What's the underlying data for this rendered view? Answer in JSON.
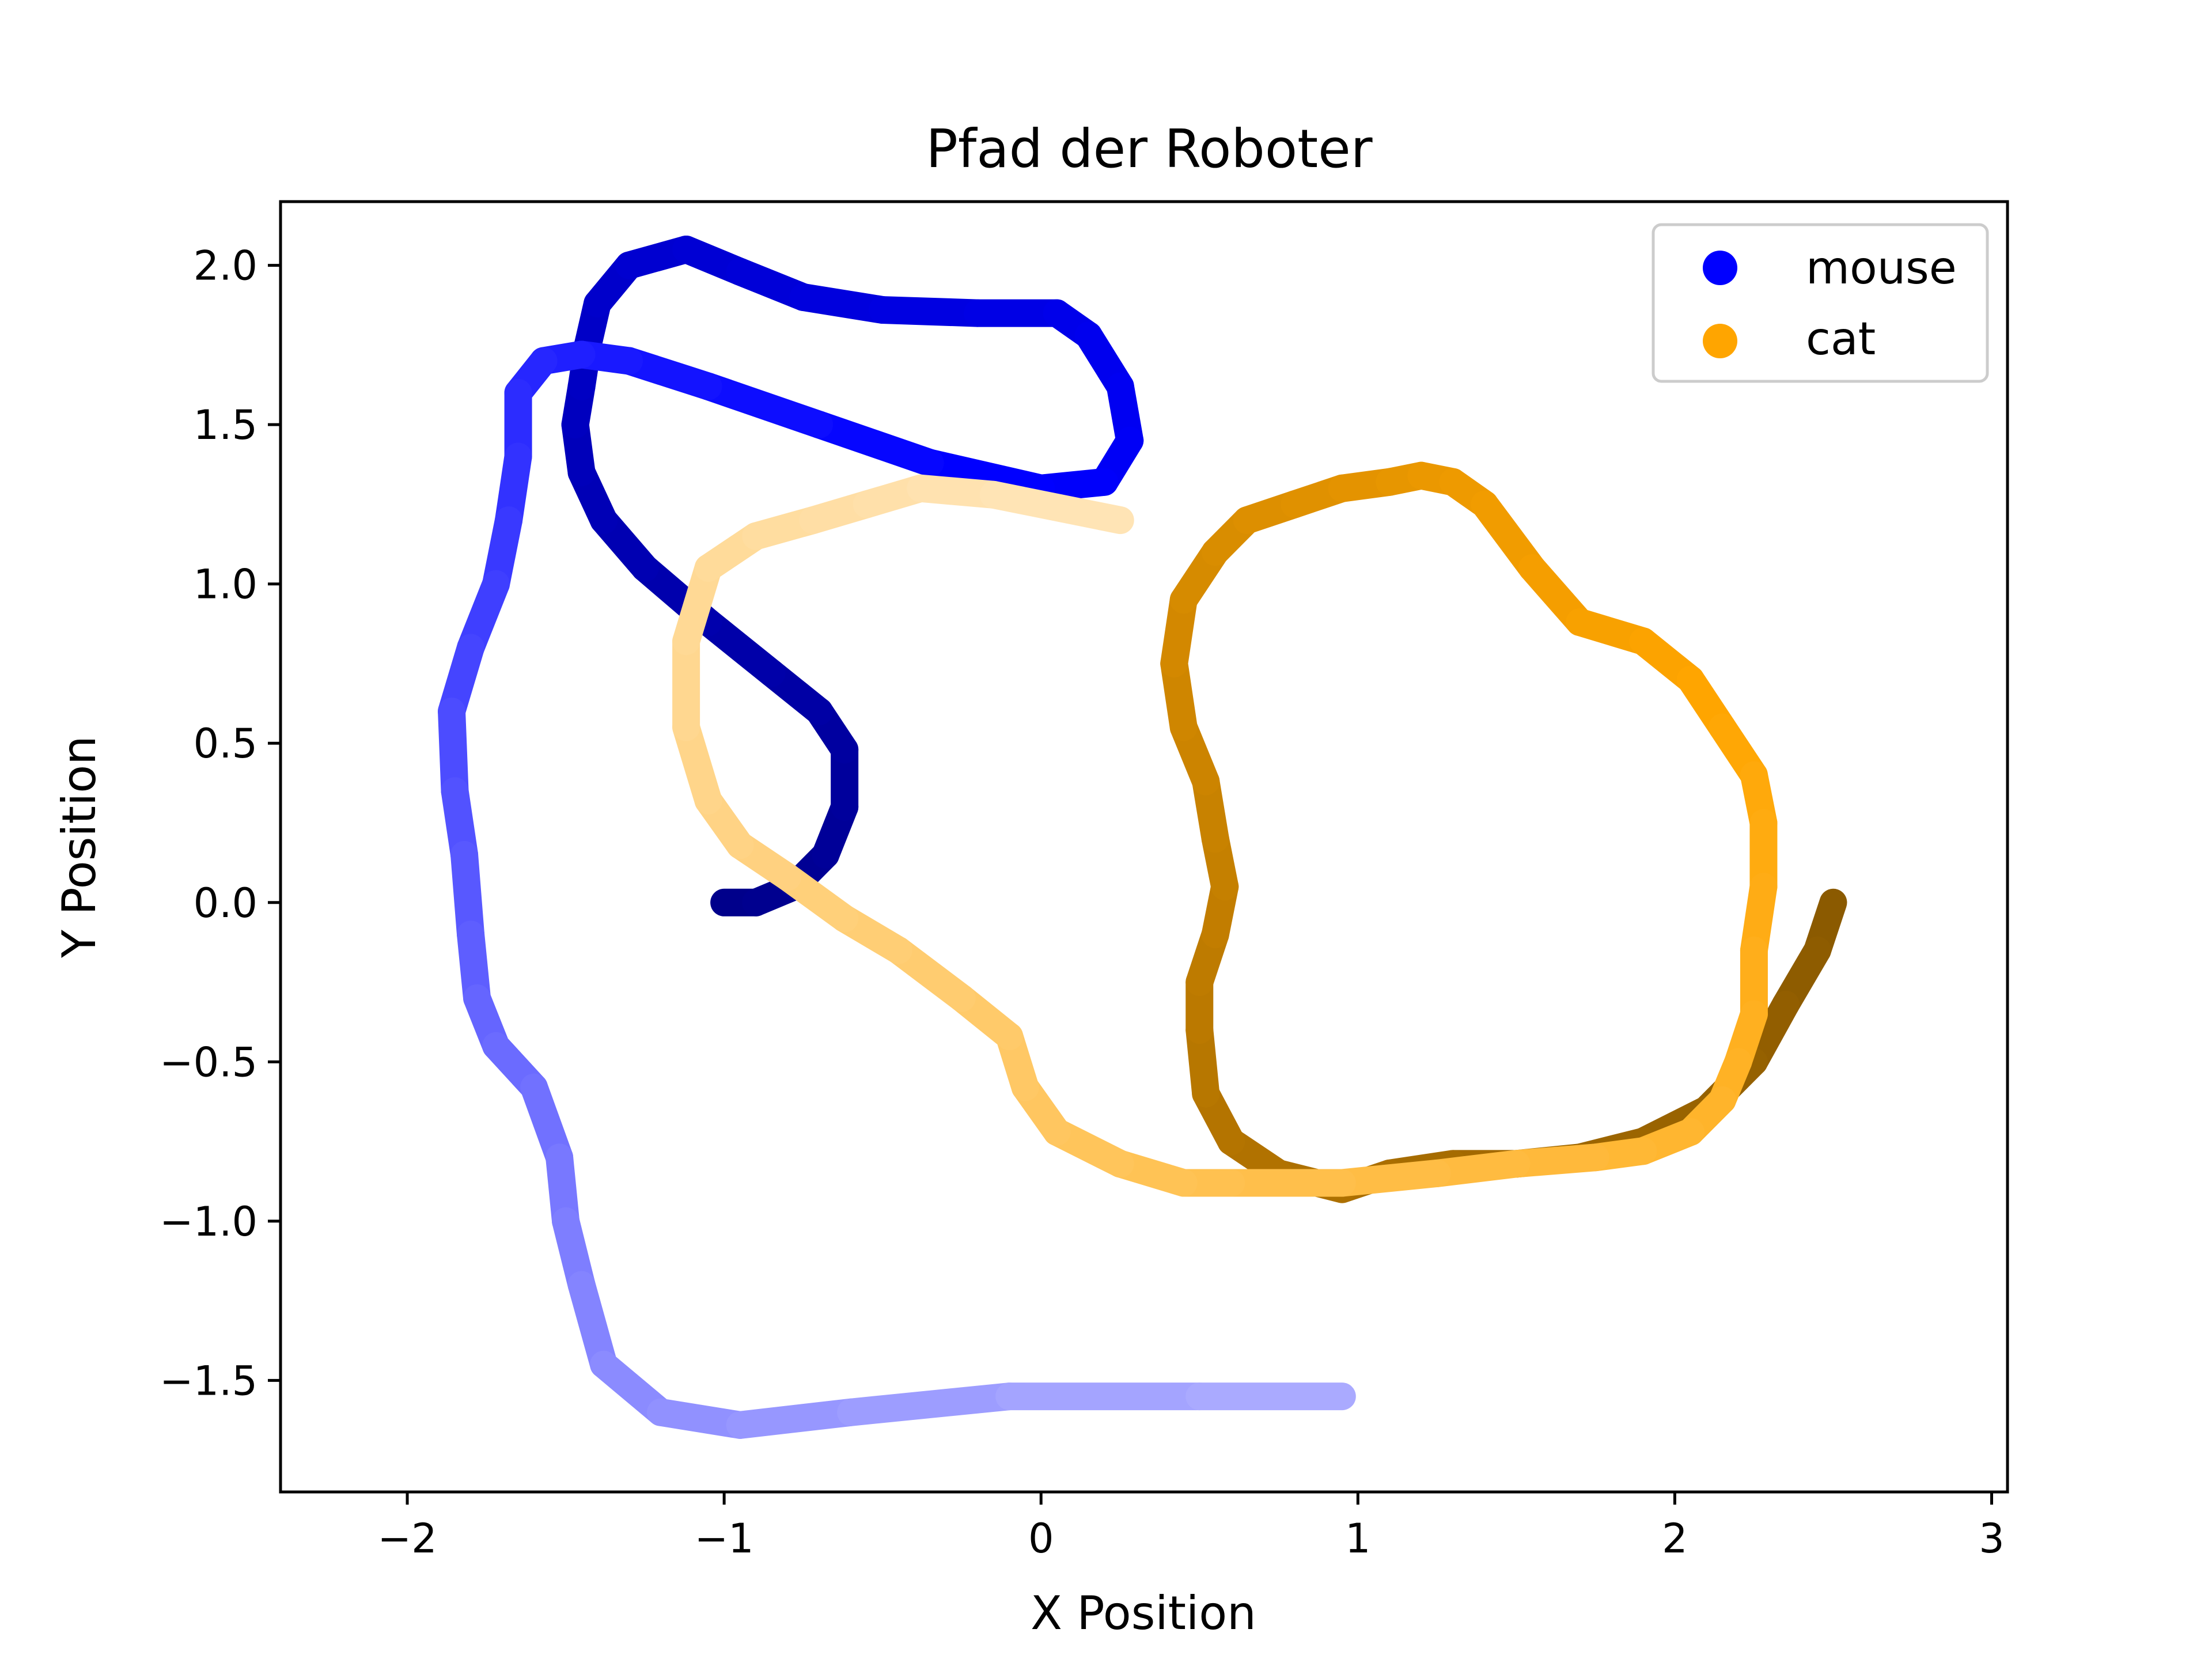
{
  "chart_data": {
    "type": "line",
    "title": "Pfad der Roboter",
    "xlabel": "X Position",
    "ylabel": "Y Position",
    "xlim": [
      -2.4,
      3.05
    ],
    "ylim": [
      -1.85,
      2.2
    ],
    "xticks": [
      -2,
      -1,
      0,
      1,
      2,
      3
    ],
    "xtick_labels": [
      "−2",
      "−1",
      "0",
      "1",
      "2",
      "3"
    ],
    "yticks": [
      2.0,
      1.5,
      1.0,
      0.5,
      0.0,
      -0.5,
      -1.0,
      -1.5
    ],
    "ytick_labels": [
      "2.0",
      "1.5",
      "1.0",
      "0.5",
      "0.0",
      "−0.5",
      "−1.0",
      "−1.5"
    ],
    "grid": false,
    "legend_position": "top-right",
    "series": [
      {
        "name": "mouse",
        "color": "#0000ff",
        "gradient": [
          "#00008b",
          "#0000ff",
          "#aaaaff"
        ],
        "x": [
          -1.0,
          -0.9,
          -0.78,
          -0.68,
          -0.62,
          -0.62,
          -0.7,
          -0.85,
          -1.05,
          -1.25,
          -1.38,
          -1.45,
          -1.47,
          -1.45,
          -1.43,
          -1.4,
          -1.3,
          -1.12,
          -0.95,
          -0.75,
          -0.5,
          -0.2,
          0.05,
          0.15,
          0.25,
          0.28,
          0.2,
          0.0,
          -0.35,
          -0.7,
          -1.05,
          -1.3,
          -1.45,
          -1.57,
          -1.65,
          -1.65,
          -1.68,
          -1.72,
          -1.8,
          -1.86,
          -1.85,
          -1.82,
          -1.8,
          -1.78,
          -1.72,
          -1.6,
          -1.52,
          -1.5,
          -1.45,
          -1.38,
          -1.2,
          -0.95,
          -0.6,
          -0.1,
          0.5,
          0.95
        ],
        "y": [
          0.0,
          0.0,
          0.05,
          0.15,
          0.3,
          0.48,
          0.6,
          0.72,
          0.88,
          1.05,
          1.2,
          1.35,
          1.5,
          1.62,
          1.75,
          1.88,
          2.0,
          2.05,
          1.98,
          1.9,
          1.86,
          1.85,
          1.85,
          1.78,
          1.62,
          1.45,
          1.32,
          1.3,
          1.38,
          1.5,
          1.62,
          1.7,
          1.72,
          1.7,
          1.6,
          1.4,
          1.2,
          1.0,
          0.8,
          0.6,
          0.35,
          0.15,
          -0.1,
          -0.3,
          -0.45,
          -0.58,
          -0.8,
          -1.0,
          -1.2,
          -1.45,
          -1.6,
          -1.64,
          -1.6,
          -1.55,
          -1.55,
          -1.55
        ]
      },
      {
        "name": "cat",
        "color": "#ffa500",
        "gradient": [
          "#8b5a00",
          "#ffa500",
          "#ffe4b5"
        ],
        "x": [
          2.5,
          2.45,
          2.35,
          2.25,
          2.1,
          1.9,
          1.7,
          1.5,
          1.3,
          1.1,
          0.95,
          0.75,
          0.6,
          0.52,
          0.5,
          0.5,
          0.55,
          0.58,
          0.55,
          0.52,
          0.45,
          0.42,
          0.45,
          0.55,
          0.65,
          0.8,
          0.95,
          1.1,
          1.2,
          1.3,
          1.4,
          1.55,
          1.7,
          1.9,
          2.05,
          2.15,
          2.25,
          2.28,
          2.28,
          2.25,
          2.25,
          2.2,
          2.15,
          2.05,
          1.9,
          1.75,
          1.5,
          1.25,
          0.95,
          0.6,
          0.45,
          0.25,
          0.05,
          -0.05,
          -0.1,
          -0.25,
          -0.45,
          -0.62,
          -0.8,
          -0.95,
          -1.05,
          -1.12,
          -1.12,
          -1.05,
          -0.9,
          -0.72,
          -0.55,
          -0.38,
          -0.15,
          0.25
        ],
        "y": [
          0.0,
          -0.15,
          -0.32,
          -0.5,
          -0.65,
          -0.75,
          -0.8,
          -0.82,
          -0.82,
          -0.85,
          -0.9,
          -0.85,
          -0.75,
          -0.6,
          -0.4,
          -0.25,
          -0.1,
          0.05,
          0.2,
          0.38,
          0.55,
          0.75,
          0.95,
          1.1,
          1.2,
          1.25,
          1.3,
          1.32,
          1.34,
          1.32,
          1.25,
          1.05,
          0.88,
          0.82,
          0.7,
          0.55,
          0.4,
          0.25,
          0.05,
          -0.15,
          -0.35,
          -0.5,
          -0.62,
          -0.72,
          -0.78,
          -0.8,
          -0.82,
          -0.85,
          -0.88,
          -0.88,
          -0.88,
          -0.82,
          -0.72,
          -0.58,
          -0.42,
          -0.3,
          -0.15,
          -0.05,
          0.08,
          0.18,
          0.32,
          0.55,
          0.82,
          1.05,
          1.15,
          1.2,
          1.25,
          1.3,
          1.28,
          1.2
        ]
      }
    ]
  }
}
